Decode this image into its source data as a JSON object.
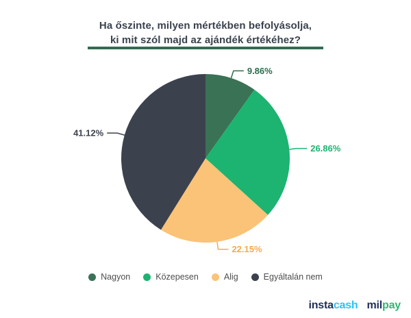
{
  "title": {
    "line1": "Ha őszinte, milyen mértékben befolyásolja,",
    "line2": "ki mit szól majd az ajándék értékéhez?"
  },
  "colors": {
    "background": "#FFFFFF",
    "title_text": "#3A424E",
    "title_underline": "#356B52",
    "legend_text": "#4D4D4D"
  },
  "chart_data": {
    "type": "pie",
    "title": "Ha őszinte, milyen mértékben befolyásolja, ki mit szól majd az ajándék értékéhez?",
    "start_angle_deg": 0,
    "direction": "clockwise",
    "legend_position": "bottom",
    "slices": [
      {
        "label": "Nagyon",
        "value": 9.86,
        "display": "9.86%",
        "color": "#3A7256",
        "label_color": "#2E6B4D"
      },
      {
        "label": "Közepesen",
        "value": 26.86,
        "display": "26.86%",
        "color": "#1DB371",
        "label_color": "#1DB371"
      },
      {
        "label": "Alig",
        "value": 22.15,
        "display": "22.15%",
        "color": "#FBC377",
        "label_color": "#F7A94C"
      },
      {
        "label": "Egyáltalán nem",
        "value": 41.12,
        "display": "41.12%",
        "color": "#3C424D",
        "label_color": "#3C424D"
      }
    ]
  },
  "footer": {
    "instacash": {
      "part1": "insta",
      "part2": "cash",
      "color1": "#1F2E55",
      "color2": "#29C4F6"
    },
    "milpay": {
      "part1": "mil",
      "part2": "pay",
      "color1": "#1F2E55",
      "color2": "#2DB873"
    }
  }
}
